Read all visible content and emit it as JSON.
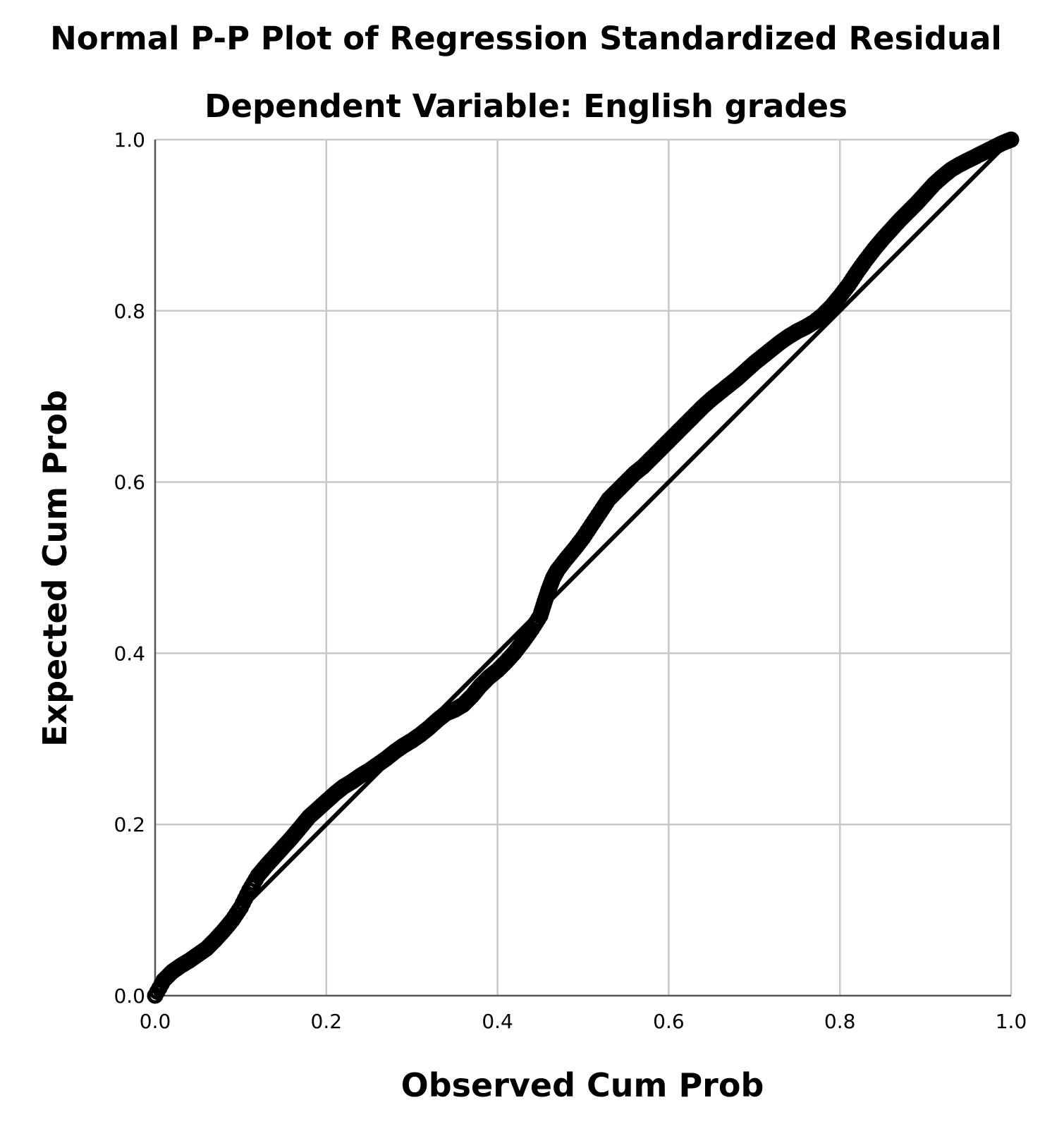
{
  "chart_data": {
    "type": "scatter",
    "title": "Normal P-P Plot of Regression Standardized Residual",
    "subtitle": "Dependent Variable: English grades",
    "xlabel": "Observed Cum Prob",
    "ylabel": "Expected Cum Prob",
    "xlim": [
      0.0,
      1.0
    ],
    "ylim": [
      0.0,
      1.0
    ],
    "xticks": [
      "0.0",
      "0.2",
      "0.4",
      "0.6",
      "0.8",
      "1.0"
    ],
    "yticks": [
      "0.0",
      "0.2",
      "0.4",
      "0.6",
      "0.8",
      "1.0"
    ],
    "grid": true,
    "reference_line": [
      [
        0.0,
        0.0
      ],
      [
        1.0,
        1.0
      ]
    ],
    "points": [
      [
        0.0,
        0.0
      ],
      [
        0.01,
        0.018
      ],
      [
        0.02,
        0.028
      ],
      [
        0.03,
        0.035
      ],
      [
        0.04,
        0.041
      ],
      [
        0.05,
        0.048
      ],
      [
        0.06,
        0.055
      ],
      [
        0.07,
        0.065
      ],
      [
        0.08,
        0.076
      ],
      [
        0.09,
        0.088
      ],
      [
        0.1,
        0.103
      ],
      [
        0.11,
        0.123
      ],
      [
        0.12,
        0.14
      ],
      [
        0.13,
        0.152
      ],
      [
        0.14,
        0.163
      ],
      [
        0.15,
        0.174
      ],
      [
        0.16,
        0.185
      ],
      [
        0.17,
        0.197
      ],
      [
        0.18,
        0.209
      ],
      [
        0.19,
        0.218
      ],
      [
        0.2,
        0.227
      ],
      [
        0.21,
        0.236
      ],
      [
        0.22,
        0.244
      ],
      [
        0.23,
        0.25
      ],
      [
        0.24,
        0.257
      ],
      [
        0.25,
        0.263
      ],
      [
        0.26,
        0.27
      ],
      [
        0.27,
        0.277
      ],
      [
        0.28,
        0.285
      ],
      [
        0.29,
        0.292
      ],
      [
        0.3,
        0.298
      ],
      [
        0.31,
        0.305
      ],
      [
        0.32,
        0.313
      ],
      [
        0.33,
        0.322
      ],
      [
        0.34,
        0.33
      ],
      [
        0.35,
        0.334
      ],
      [
        0.36,
        0.34
      ],
      [
        0.37,
        0.35
      ],
      [
        0.38,
        0.362
      ],
      [
        0.39,
        0.372
      ],
      [
        0.4,
        0.38
      ],
      [
        0.41,
        0.39
      ],
      [
        0.42,
        0.401
      ],
      [
        0.43,
        0.414
      ],
      [
        0.44,
        0.428
      ],
      [
        0.45,
        0.444
      ],
      [
        0.455,
        0.46
      ],
      [
        0.46,
        0.475
      ],
      [
        0.465,
        0.488
      ],
      [
        0.47,
        0.497
      ],
      [
        0.48,
        0.51
      ],
      [
        0.49,
        0.522
      ],
      [
        0.5,
        0.535
      ],
      [
        0.51,
        0.55
      ],
      [
        0.52,
        0.565
      ],
      [
        0.53,
        0.58
      ],
      [
        0.54,
        0.59
      ],
      [
        0.55,
        0.6
      ],
      [
        0.56,
        0.61
      ],
      [
        0.57,
        0.618
      ],
      [
        0.58,
        0.628
      ],
      [
        0.59,
        0.638
      ],
      [
        0.6,
        0.648
      ],
      [
        0.61,
        0.658
      ],
      [
        0.62,
        0.668
      ],
      [
        0.63,
        0.678
      ],
      [
        0.64,
        0.688
      ],
      [
        0.65,
        0.697
      ],
      [
        0.66,
        0.705
      ],
      [
        0.67,
        0.713
      ],
      [
        0.68,
        0.721
      ],
      [
        0.69,
        0.73
      ],
      [
        0.7,
        0.739
      ],
      [
        0.71,
        0.747
      ],
      [
        0.72,
        0.755
      ],
      [
        0.73,
        0.763
      ],
      [
        0.74,
        0.77
      ],
      [
        0.75,
        0.776
      ],
      [
        0.76,
        0.781
      ],
      [
        0.77,
        0.787
      ],
      [
        0.78,
        0.795
      ],
      [
        0.79,
        0.805
      ],
      [
        0.8,
        0.817
      ],
      [
        0.81,
        0.83
      ],
      [
        0.82,
        0.845
      ],
      [
        0.83,
        0.859
      ],
      [
        0.84,
        0.872
      ],
      [
        0.85,
        0.884
      ],
      [
        0.86,
        0.895
      ],
      [
        0.87,
        0.906
      ],
      [
        0.88,
        0.916
      ],
      [
        0.89,
        0.926
      ],
      [
        0.9,
        0.937
      ],
      [
        0.91,
        0.948
      ],
      [
        0.92,
        0.957
      ],
      [
        0.93,
        0.965
      ],
      [
        0.94,
        0.971
      ],
      [
        0.95,
        0.976
      ],
      [
        0.96,
        0.981
      ],
      [
        0.97,
        0.986
      ],
      [
        0.98,
        0.991
      ],
      [
        0.99,
        0.996
      ],
      [
        1.0,
        1.0
      ]
    ],
    "colors": {
      "points": "#000000",
      "grid": "#c8c8c8",
      "axis": "#555555"
    }
  }
}
